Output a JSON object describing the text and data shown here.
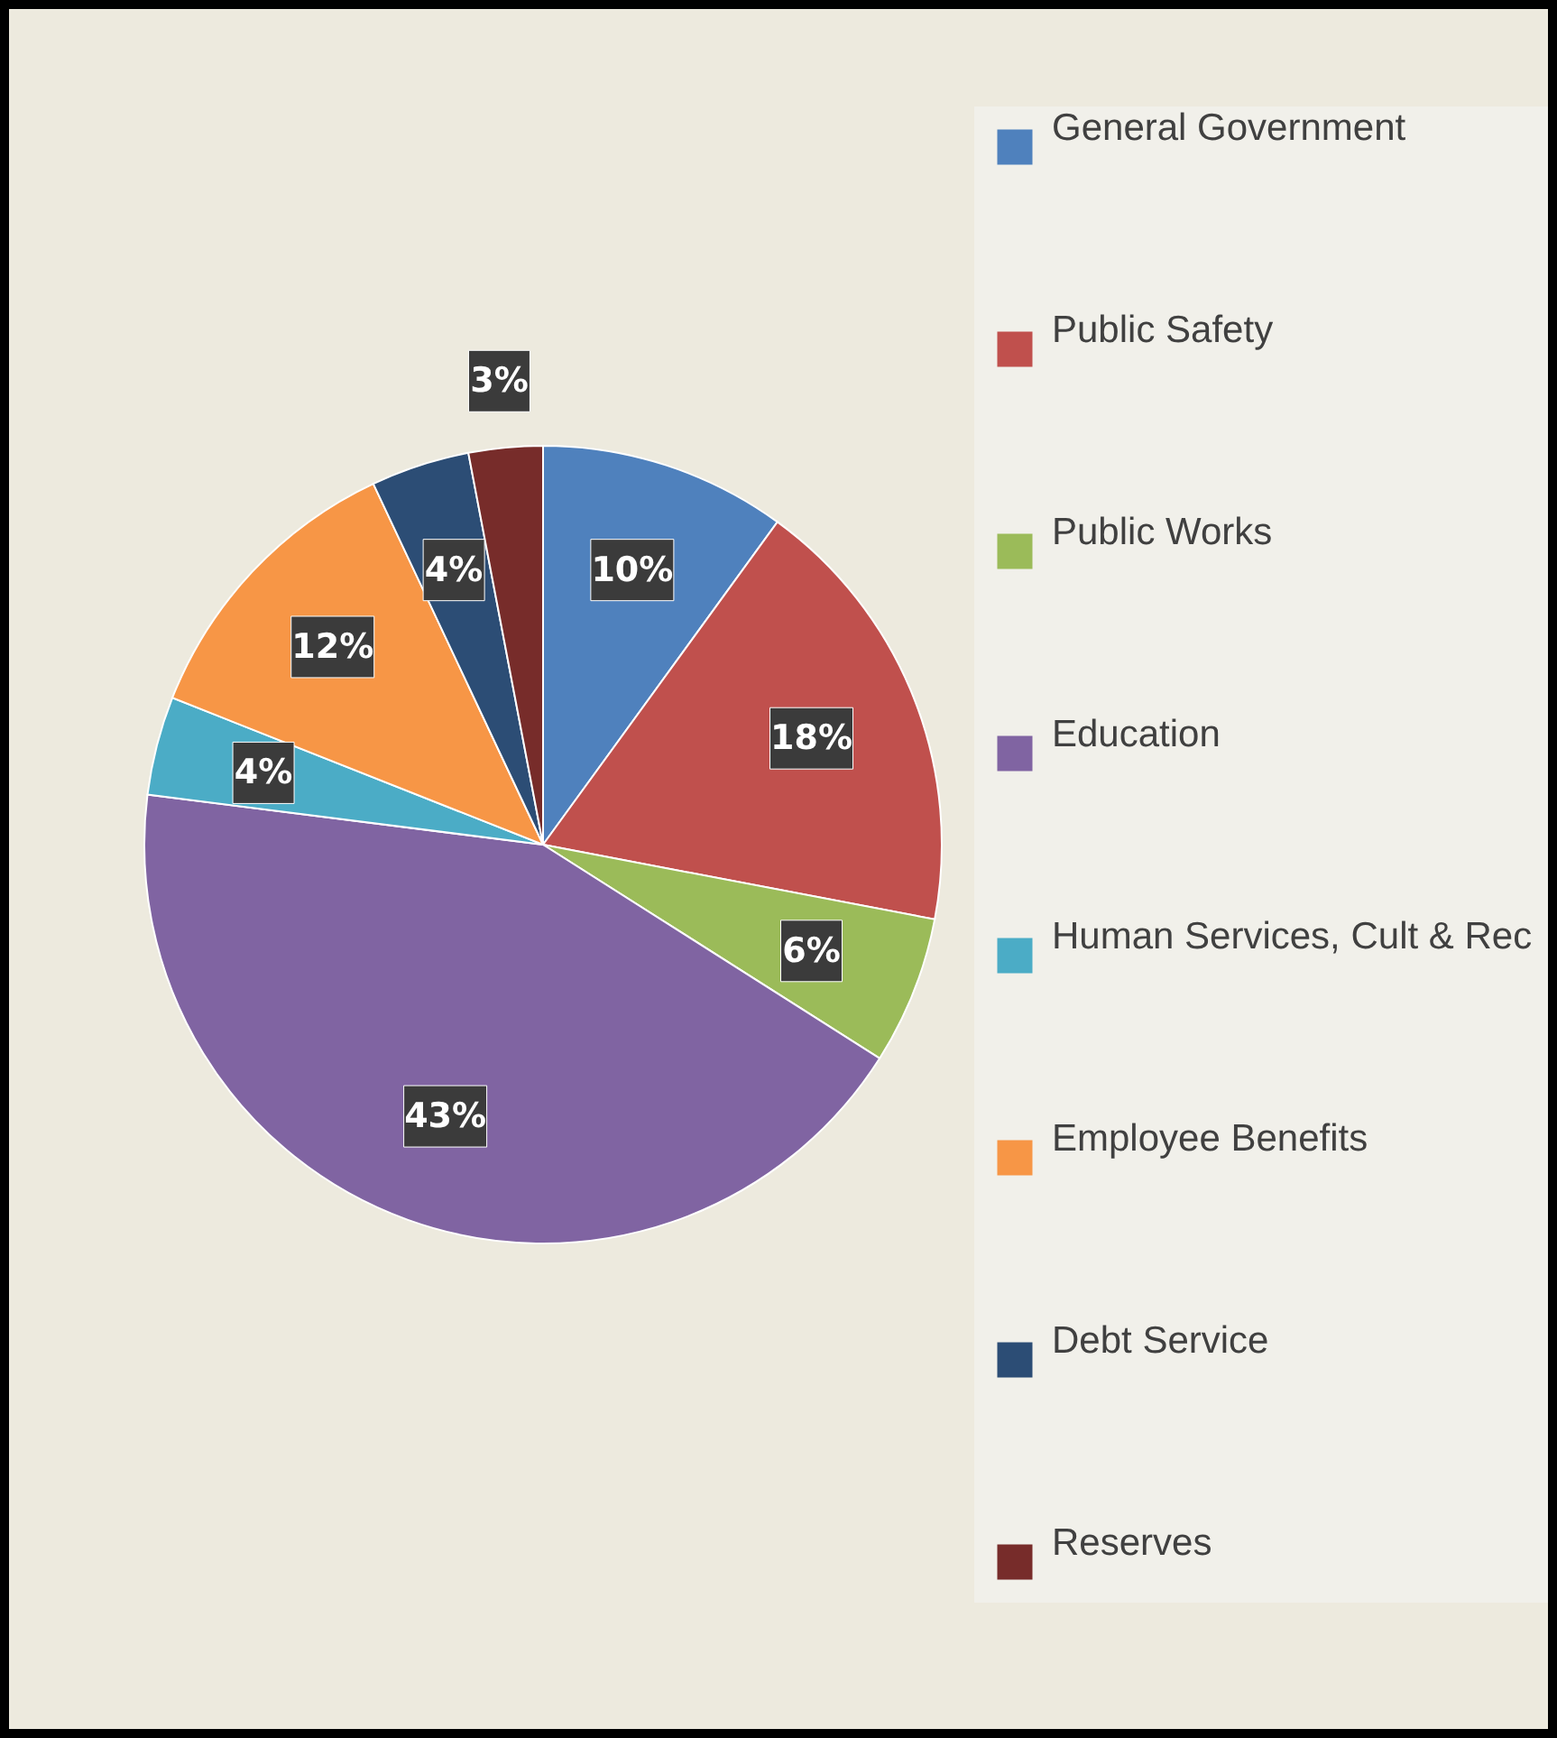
{
  "chart_data": {
    "type": "pie",
    "categories": [
      "General Government",
      "Public Safety",
      "Public Works",
      "Education",
      "Human Services, Cult & Rec",
      "Employee Benefits",
      "Debt Service",
      "Reserves"
    ],
    "values": [
      10,
      18,
      6,
      43,
      4,
      12,
      4,
      3
    ],
    "colors": [
      "#4f81bd",
      "#c0504d",
      "#9bbb59",
      "#8064a2",
      "#4bacc6",
      "#f79646",
      "#2c4d75",
      "#772c2a"
    ],
    "value_labels": [
      "10%",
      "18%",
      "6%",
      "43%",
      "4%",
      "12%",
      "4%",
      "3%"
    ],
    "legend": "right"
  }
}
